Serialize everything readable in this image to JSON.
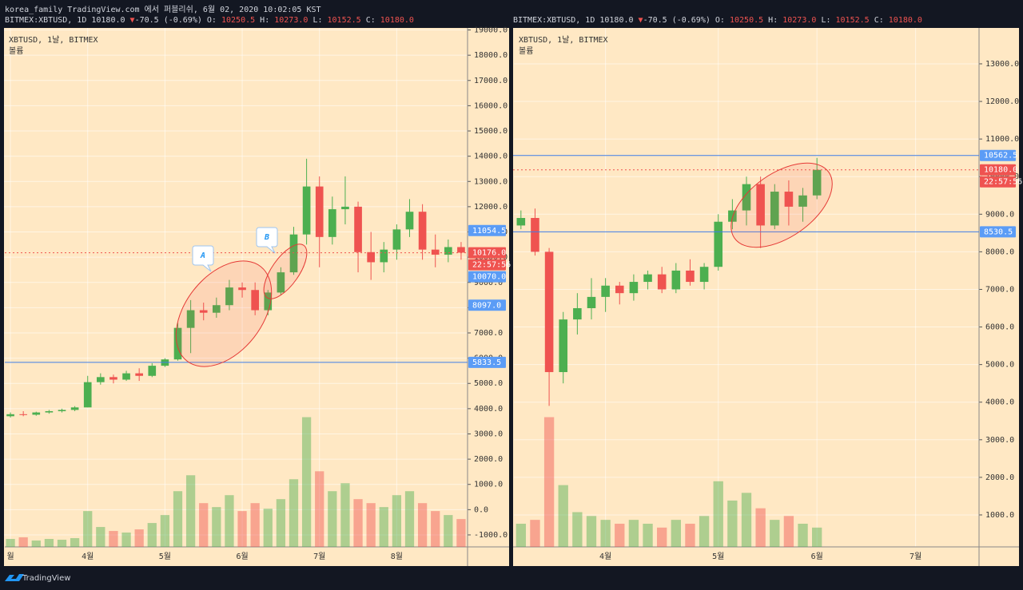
{
  "header": {
    "publish": "korea_family TradingView.com 에서 퍼블리쉬, 6월 02, 2020 10:02:05 KST",
    "footer": "TradingView"
  },
  "chart_data": [
    {
      "type": "candlestick",
      "symbol": "BITMEX:XBTUSD, 1D 10180.0",
      "change": "-70.5 (-0.69%)",
      "ohlc_legend": [
        {
          "label": "O:",
          "value": "10250.5"
        },
        {
          "label": "H:",
          "value": "10273.0"
        },
        {
          "label": "L:",
          "value": "10152.5"
        },
        {
          "label": "C:",
          "value": "10180.0"
        }
      ],
      "title": "XBTUSD, 1날, BITMEX",
      "subtitle": "볼륨",
      "categories": [
        "월",
        null,
        null,
        null,
        null,
        null,
        "4월",
        null,
        null,
        null,
        null,
        null,
        "5월",
        null,
        null,
        null,
        null,
        null,
        "6월",
        null,
        null,
        null,
        null,
        null,
        "7월",
        null,
        null,
        null,
        null,
        null,
        "8월",
        null,
        null,
        null,
        null,
        null
      ],
      "open": [
        3700,
        3780,
        3760,
        3850,
        3900,
        3950,
        4050,
        5050,
        5250,
        5150,
        5400,
        5300,
        5700,
        5950,
        7200,
        7900,
        7800,
        8100,
        8800,
        8700,
        7900,
        8600,
        9400,
        10900,
        12800,
        10800,
        11900,
        12000,
        10200,
        9800,
        10300,
        11100,
        11800,
        10300,
        10100,
        10400
      ],
      "high": [
        3850,
        3900,
        3880,
        3950,
        4000,
        4100,
        5300,
        5400,
        5350,
        5500,
        5600,
        5800,
        6000,
        7400,
        8300,
        8200,
        8400,
        9100,
        9000,
        9000,
        8700,
        9600,
        11200,
        13900,
        13200,
        12400,
        13200,
        12200,
        11000,
        10600,
        11300,
        12300,
        12100,
        10900,
        10700,
        10600
      ],
      "low": [
        3650,
        3700,
        3720,
        3800,
        3850,
        3900,
        4050,
        4950,
        5000,
        5100,
        5100,
        5250,
        5650,
        5900,
        6200,
        7500,
        7600,
        7900,
        8400,
        7700,
        7700,
        8500,
        9300,
        10500,
        9600,
        10500,
        11300,
        9400,
        9100,
        9400,
        9900,
        10800,
        9900,
        9600,
        9800,
        9900
      ],
      "close": [
        3780,
        3760,
        3850,
        3900,
        3950,
        4050,
        5050,
        5250,
        5150,
        5400,
        5300,
        5700,
        5950,
        7200,
        7900,
        7800,
        8100,
        8800,
        8700,
        7900,
        8600,
        9400,
        10900,
        12800,
        10800,
        11900,
        12000,
        10200,
        9800,
        10300,
        11100,
        11800,
        10300,
        10100,
        10400,
        10180
      ],
      "volume": [
        10,
        12,
        8,
        10,
        9,
        11,
        45,
        25,
        20,
        18,
        22,
        30,
        40,
        70,
        90,
        55,
        50,
        65,
        45,
        55,
        48,
        60,
        85,
        163,
        95,
        70,
        80,
        60,
        55,
        50,
        65,
        70,
        55,
        45,
        40,
        35
      ],
      "up_color": "#4caf50",
      "down_color": "#ef5350",
      "ylim": [
        -1475,
        19080
      ],
      "yticks": [
        {
          "value": 19000,
          "label": "19000.0"
        },
        {
          "value": 18000,
          "label": "18000.0"
        },
        {
          "value": 17000,
          "label": "17000.0"
        },
        {
          "value": 16000,
          "label": "16000.0"
        },
        {
          "value": 15000,
          "label": "15000.0"
        },
        {
          "value": 14000,
          "label": "14000.0"
        },
        {
          "value": 13000,
          "label": "13000.0"
        },
        {
          "value": 12000,
          "label": "12000.0"
        },
        {
          "value": 11000,
          "label": "11000.0"
        },
        {
          "value": 10000,
          "label": "10000.0"
        },
        {
          "value": 9000,
          "label": "9000.0"
        },
        {
          "value": 8000,
          "label": "8000.0"
        },
        {
          "value": 7000,
          "label": "7000.0"
        },
        {
          "value": 6000,
          "label": "6000.0"
        },
        {
          "value": 5000,
          "label": "5000.0"
        },
        {
          "value": 4000,
          "label": "4000.0"
        },
        {
          "value": 3000,
          "label": "3000.0"
        },
        {
          "value": 2000,
          "label": "2000.0"
        },
        {
          "value": 1000,
          "label": "1000.0"
        },
        {
          "value": 0,
          "label": "0.0"
        },
        {
          "value": -1000,
          "label": "-1000.0"
        }
      ],
      "grid": true,
      "price_tags": [
        {
          "value": 11054.5,
          "label": "11054.5",
          "color": "#5b9cf6"
        },
        {
          "value": 10176,
          "label": "10176.0",
          "color": "#ef5350",
          "line": "dashed",
          "countdown": "22:57:56"
        },
        {
          "value": 10070,
          "label": "10070.0",
          "color": "#5b9cf6"
        },
        {
          "value": 8097,
          "label": "8097.0",
          "color": "#5b9cf6"
        },
        {
          "value": 5833.5,
          "label": "5833.5",
          "color": "#5b9cf6",
          "line": "solid"
        }
      ],
      "annotations": [
        "A",
        "B"
      ]
    },
    {
      "type": "candlestick",
      "symbol": "BITMEX:XBTUSD, 1D 10180.0",
      "change": "-70.5 (-0.69%)",
      "ohlc_legend": [
        {
          "label": "O:",
          "value": "10250.5"
        },
        {
          "label": "H:",
          "value": "10273.0"
        },
        {
          "label": "L:",
          "value": "10152.5"
        },
        {
          "label": "C:",
          "value": "10180.0"
        }
      ],
      "title": "XBTUSD, 1날, BITMEX",
      "subtitle": "볼륨",
      "categories": [
        null,
        null,
        null,
        null,
        null,
        null,
        "4월",
        null,
        null,
        null,
        null,
        null,
        null,
        null,
        "5월",
        null,
        null,
        null,
        null,
        null,
        null,
        "6월",
        null,
        null,
        null,
        null,
        null,
        null,
        "7월",
        null,
        null,
        null,
        null
      ],
      "open": [
        8700,
        8900,
        8000,
        4800,
        6200,
        6500,
        6800,
        7100,
        6900,
        7200,
        7400,
        7000,
        7500,
        7200,
        7600,
        8800,
        9100,
        9800,
        8700,
        9600,
        9200,
        9500,
        null,
        null,
        null,
        null,
        null,
        null,
        null,
        null,
        null,
        null,
        null
      ],
      "high": [
        9100,
        9150,
        8100,
        6400,
        6900,
        7300,
        7300,
        7200,
        7400,
        7500,
        7600,
        7700,
        7800,
        7700,
        9000,
        9400,
        10000,
        10000,
        9800,
        9900,
        9700,
        10500,
        null,
        null,
        null,
        null,
        null,
        null,
        null,
        null,
        null,
        null,
        null
      ],
      "low": [
        8600,
        7900,
        3900,
        4500,
        5800,
        6200,
        6400,
        6600,
        6700,
        7000,
        6900,
        6900,
        7100,
        7000,
        7500,
        8600,
        8700,
        8100,
        8600,
        8700,
        8800,
        9400,
        null,
        null,
        null,
        null,
        null,
        null,
        null,
        null,
        null,
        null,
        null
      ],
      "close": [
        8900,
        8000,
        4800,
        6200,
        6500,
        6800,
        7100,
        6900,
        7200,
        7400,
        7000,
        7500,
        7200,
        7600,
        8800,
        9100,
        9800,
        8700,
        9600,
        9200,
        9500,
        10180,
        null,
        null,
        null,
        null,
        null,
        null,
        null,
        null,
        null,
        null,
        null
      ],
      "volume": [
        30,
        35,
        168,
        80,
        45,
        40,
        35,
        30,
        35,
        30,
        25,
        35,
        30,
        40,
        85,
        60,
        70,
        50,
        35,
        40,
        30,
        25,
        null,
        null,
        null,
        null,
        null,
        null,
        null,
        null,
        null,
        null,
        null
      ],
      "up_color": "#4caf50",
      "down_color": "#ef5350",
      "ylim": [
        150,
        13955
      ],
      "yticks": [
        {
          "value": 13000,
          "label": "13000.0"
        },
        {
          "value": 12000,
          "label": "12000.0"
        },
        {
          "value": 11000,
          "label": "11000.0"
        },
        {
          "value": 10000,
          "label": "10000.0"
        },
        {
          "value": 9000,
          "label": "9000.0"
        },
        {
          "value": 8000,
          "label": "8000.0"
        },
        {
          "value": 7000,
          "label": "7000.0"
        },
        {
          "value": 6000,
          "label": "6000.0"
        },
        {
          "value": 5000,
          "label": "5000.0"
        },
        {
          "value": 4000,
          "label": "4000.0"
        },
        {
          "value": 3000,
          "label": "3000.0"
        },
        {
          "value": 2000,
          "label": "2000.0"
        },
        {
          "value": 1000,
          "label": "1000.0"
        }
      ],
      "grid": true,
      "price_tags": [
        {
          "value": 10562.5,
          "label": "10562.5",
          "color": "#5b9cf6",
          "line": "solid"
        },
        {
          "value": 10180,
          "label": "10180.0",
          "color": "#ef5350",
          "line": "dashed",
          "countdown": "22:57:56"
        },
        {
          "value": 8530.5,
          "label": "8530.5",
          "color": "#5b9cf6",
          "line": "solid"
        }
      ]
    }
  ]
}
